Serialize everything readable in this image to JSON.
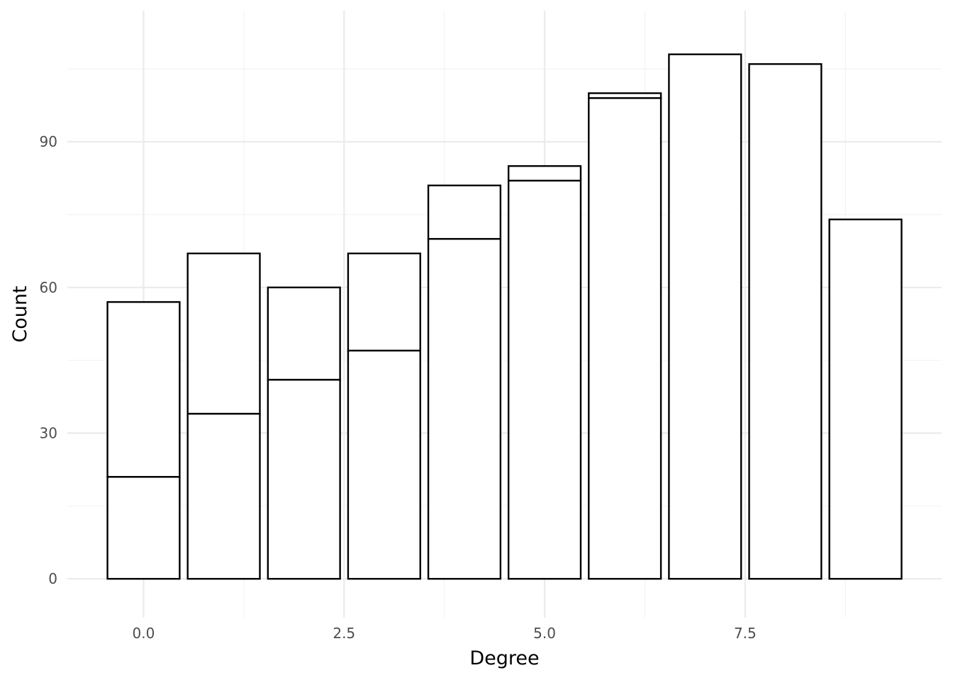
{
  "chart_data": {
    "type": "bar",
    "stacked": true,
    "xlabel": "Degree",
    "ylabel": "Count",
    "x_values": [
      0,
      1,
      2,
      3,
      4,
      5,
      6,
      7,
      8,
      9
    ],
    "bar_width": 0.9,
    "series": [
      {
        "values": [
          21,
          34,
          41,
          47,
          70,
          82,
          99,
          108,
          106,
          74
        ]
      },
      {
        "values": [
          36,
          33,
          19,
          20,
          11,
          3,
          1,
          0,
          0,
          0
        ]
      }
    ],
    "totals": [
      57,
      67,
      60,
      67,
      81,
      85,
      100,
      108,
      106,
      74
    ],
    "xlim": [
      -0.95,
      9.95
    ],
    "ylim": [
      -8,
      117
    ],
    "x_ticks": [
      0.0,
      2.5,
      5.0,
      7.5
    ],
    "x_tick_labels": [
      "0.0",
      "2.5",
      "5.0",
      "7.5"
    ],
    "y_ticks": [
      0,
      30,
      60,
      90
    ],
    "y_tick_labels": [
      "0",
      "30",
      "60",
      "90"
    ],
    "x_minor_ticks": [
      1.25,
      3.75,
      6.25,
      8.75
    ],
    "y_minor_ticks": [
      15,
      45,
      75,
      105
    ],
    "grid": true,
    "legend": "none",
    "colors": {
      "bar_fill": "#ffffff",
      "bar_stroke": "#000000",
      "grid_major": "#ebebeb",
      "grid_minor": "#f2f2f2",
      "tick_text": "#4d4d4d",
      "axis_title": "#000000"
    }
  }
}
